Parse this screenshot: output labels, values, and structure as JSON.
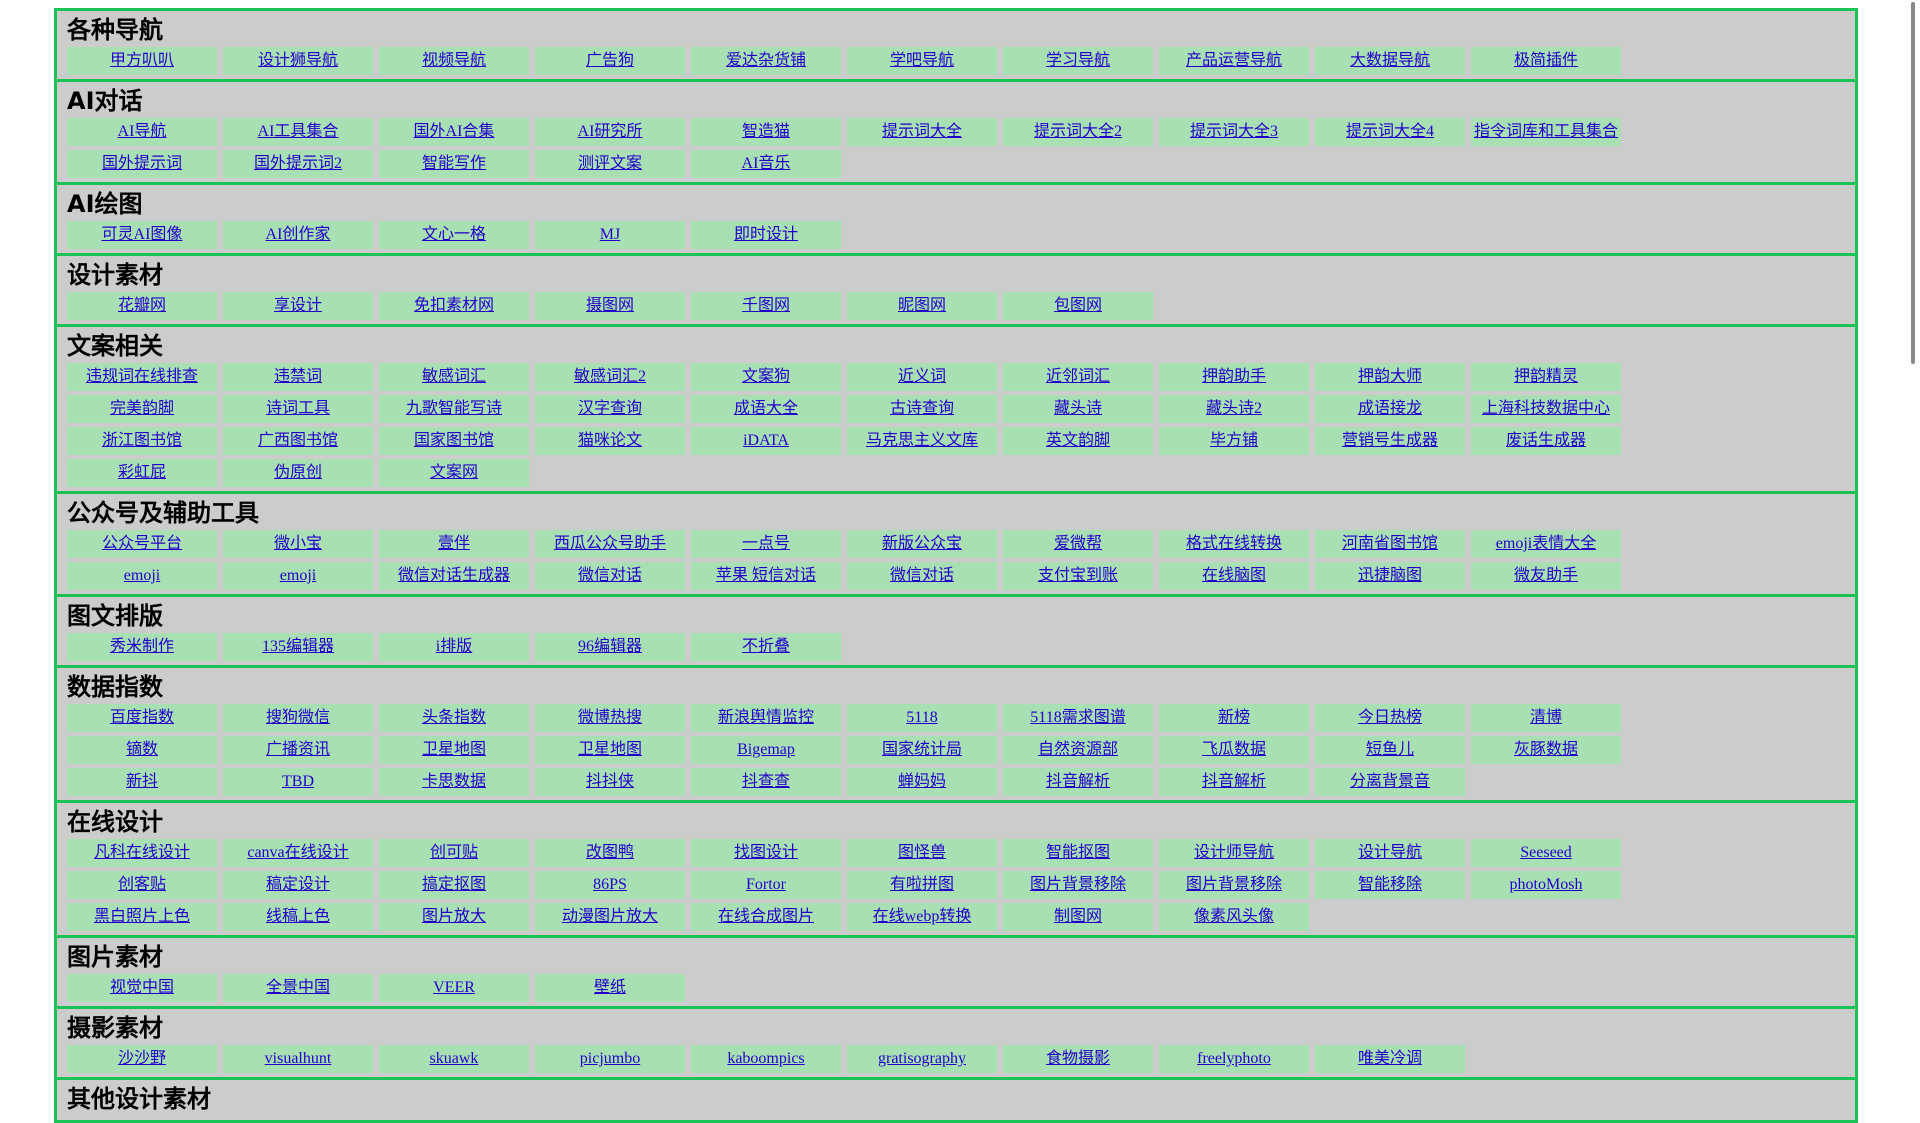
{
  "sections": [
    {
      "title": "各种导航",
      "links": [
        "甲方叭叭",
        "设计狮导航",
        "视频导航",
        "广告狗",
        "爱达杂货铺",
        "学吧导航",
        "学习导航",
        "产品运营导航",
        "大数据导航",
        "极简插件"
      ]
    },
    {
      "title": "AI对话",
      "links": [
        "AI导航",
        "AI工具集合",
        "国外AI合集",
        "AI研究所",
        "智造猫",
        "提示词大全",
        "提示词大全2",
        "提示词大全3",
        "提示词大全4",
        "指令词库和工具集合",
        "国外提示词",
        "国外提示词2",
        "智能写作",
        "测评文案",
        "AI音乐"
      ]
    },
    {
      "title": "AI绘图",
      "links": [
        "可灵AI图像",
        "AI创作家",
        "文心一格",
        "MJ",
        "即时设计"
      ]
    },
    {
      "title": "设计素材",
      "links": [
        "花瓣网",
        "享设计",
        "免扣素材网",
        "摄图网",
        "千图网",
        "昵图网",
        "包图网"
      ]
    },
    {
      "title": "文案相关",
      "links": [
        "违规词在线排查",
        "违禁词",
        "敏感词汇",
        "敏感词汇2",
        "文案狗",
        "近义词",
        "近邻词汇",
        "押韵助手",
        "押韵大师",
        "押韵精灵",
        "完美韵脚",
        "诗词工具",
        "九歌智能写诗",
        "汉字查询",
        "成语大全",
        "古诗查询",
        "藏头诗",
        "藏头诗2",
        "成语接龙",
        "上海科技数据中心",
        "浙江图书馆",
        "广西图书馆",
        "国家图书馆",
        "猫咪论文",
        "iDATA",
        "马克思主义文库",
        "英文韵脚",
        "毕方铺",
        "营销号生成器",
        "废话生成器",
        "彩虹屁",
        "伪原创",
        "文案网"
      ]
    },
    {
      "title": "公众号及辅助工具",
      "links": [
        "公众号平台",
        "微小宝",
        "壹伴",
        "西瓜公众号助手",
        "一点号",
        "新版公众宝",
        "爱微帮",
        "格式在线转换",
        "河南省图书馆",
        "emoji表情大全",
        "emoji",
        "emoji",
        "微信对话生成器",
        "微信对话",
        "苹果 短信对话",
        "微信对话",
        "支付宝到账",
        "在线脑图",
        "迅捷脑图",
        "微友助手"
      ]
    },
    {
      "title": "图文排版",
      "links": [
        "秀米制作",
        "135编辑器",
        "i排版",
        "96编辑器",
        "不折叠"
      ]
    },
    {
      "title": "数据指数",
      "links": [
        "百度指数",
        "搜狗微信",
        "头条指数",
        "微博热搜",
        "新浪舆情监控",
        "5118",
        "5118需求图谱",
        "新榜",
        "今日热榜",
        "清博",
        "镝数",
        "广播资讯",
        "卫星地图",
        "卫星地图",
        "Bigemap",
        "国家统计局",
        "自然资源部",
        "飞瓜数据",
        "短鱼儿",
        "灰豚数据",
        "新抖",
        "TBD",
        "卡思数据",
        "抖抖侠",
        "抖查查",
        "蝉妈妈",
        "抖音解析",
        "抖音解析",
        "分离背景音"
      ]
    },
    {
      "title": "在线设计",
      "links": [
        "凡科在线设计",
        "canva在线设计",
        "创可贴",
        "改图鸭",
        "找图设计",
        "图怪兽",
        "智能抠图",
        "设计师导航",
        "设计导航",
        "Seeseed",
        "创客贴",
        "稿定设计",
        "搞定抠图",
        "86PS",
        "Fortor",
        "有啦拼图",
        "图片背景移除",
        "图片背景移除",
        "智能移除",
        "photoMosh",
        "黑白照片上色",
        "线稿上色",
        "图片放大",
        "动漫图片放大",
        "在线合成图片",
        "在线webp转换",
        "制图网",
        "像素风头像"
      ]
    },
    {
      "title": "图片素材",
      "links": [
        "视觉中国",
        "全景中国",
        "VEER",
        "壁纸"
      ]
    },
    {
      "title": "摄影素材",
      "links": [
        "沙沙野",
        "visualhunt",
        "skuawk",
        "picjumbo",
        "kaboompics",
        "gratisography",
        "食物摄影",
        "freelyphoto",
        "唯美冷调"
      ]
    },
    {
      "title": "其他设计素材",
      "links": []
    }
  ]
}
